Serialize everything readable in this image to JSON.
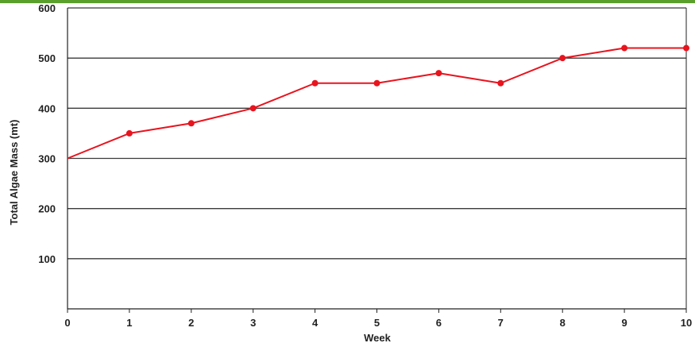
{
  "colors": {
    "line": "#e8141e",
    "top_bar": "#5aa02c",
    "grid": "#3a3a3a",
    "axis": "#222222"
  },
  "chart_data": {
    "type": "line",
    "title": "",
    "xlabel": "Week",
    "ylabel": "Total Algae Mass (mt)",
    "xlim": [
      0,
      10
    ],
    "ylim": [
      0,
      600
    ],
    "x_ticks": [
      0,
      1,
      2,
      3,
      4,
      5,
      6,
      7,
      8,
      9,
      10
    ],
    "y_ticks": [
      100,
      200,
      300,
      400,
      500,
      600
    ],
    "grid": "horizontal",
    "series": [
      {
        "x": [
          0,
          1,
          2,
          3,
          4,
          5,
          6,
          7,
          8,
          9,
          10
        ],
        "y": [
          300,
          350,
          370,
          400,
          450,
          450,
          470,
          450,
          500,
          520,
          520
        ]
      }
    ]
  }
}
